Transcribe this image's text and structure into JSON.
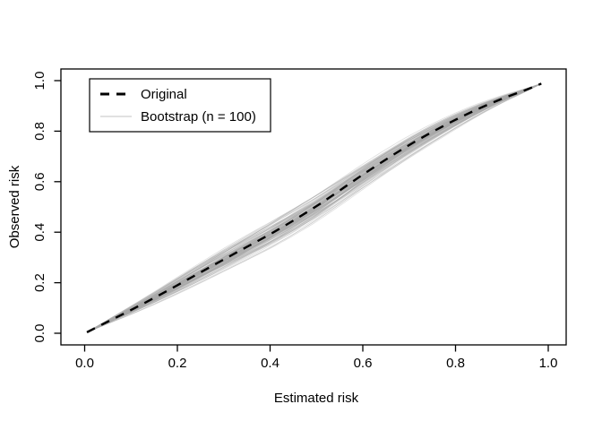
{
  "chart_data": {
    "type": "line",
    "title": "",
    "xlabel": "Estimated risk",
    "ylabel": "Observed risk",
    "xlim": [
      0.0,
      1.0
    ],
    "ylim": [
      0.0,
      1.0
    ],
    "grid": false,
    "xticks": [
      0.0,
      0.2,
      0.4,
      0.6,
      0.8,
      1.0
    ],
    "xtick_labels": [
      "0.0",
      "0.2",
      "0.4",
      "0.6",
      "0.8",
      "1.0"
    ],
    "yticks": [
      0.0,
      0.2,
      0.4,
      0.6,
      0.8,
      1.0
    ],
    "ytick_labels": [
      "0.0",
      "0.2",
      "0.4",
      "0.6",
      "0.8",
      "1.0"
    ],
    "legend": {
      "position": "topleft",
      "entries": [
        {
          "label": "Original",
          "line_style": "dashed",
          "line_color": "#000000",
          "line_width": 3
        },
        {
          "label": "Bootstrap (n = 100)",
          "line_style": "solid",
          "line_color": "#cfcfcf",
          "line_width": 1.3
        }
      ]
    },
    "series": [
      {
        "name": "Original",
        "style": "dashed",
        "color": "#000000",
        "points": [
          [
            0.005,
            0.004
          ],
          [
            0.05,
            0.046
          ],
          [
            0.1,
            0.092
          ],
          [
            0.15,
            0.14
          ],
          [
            0.2,
            0.19
          ],
          [
            0.25,
            0.241
          ],
          [
            0.3,
            0.292
          ],
          [
            0.35,
            0.342
          ],
          [
            0.4,
            0.392
          ],
          [
            0.45,
            0.446
          ],
          [
            0.5,
            0.503
          ],
          [
            0.55,
            0.565
          ],
          [
            0.6,
            0.628
          ],
          [
            0.65,
            0.688
          ],
          [
            0.7,
            0.745
          ],
          [
            0.75,
            0.797
          ],
          [
            0.8,
            0.845
          ],
          [
            0.85,
            0.889
          ],
          [
            0.9,
            0.928
          ],
          [
            0.95,
            0.962
          ],
          [
            0.985,
            0.988
          ]
        ]
      },
      {
        "name": "Bootstrap",
        "style": "ensemble",
        "n": 100,
        "color": "#a8a8a8",
        "opacity": 0.38,
        "line_width": 0.8,
        "spread": 0.02,
        "converge_start": [
          0.005,
          0.004
        ],
        "converge_end": [
          0.985,
          0.988
        ]
      }
    ]
  }
}
